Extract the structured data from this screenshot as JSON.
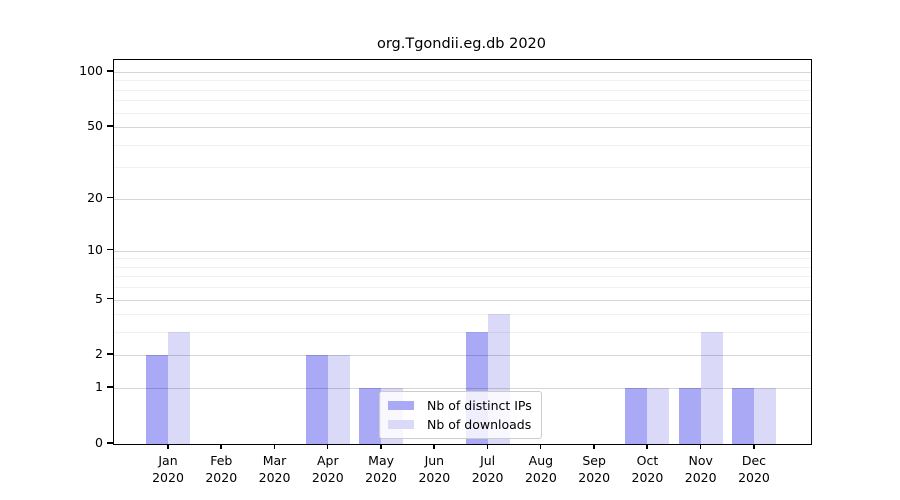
{
  "title": "org.Tgondii.eg.db 2020",
  "chart_data": {
    "type": "bar",
    "title": "org.Tgondii.eg.db 2020",
    "categories": [
      "Jan",
      "Feb",
      "Mar",
      "Apr",
      "May",
      "Jun",
      "Jul",
      "Aug",
      "Sep",
      "Oct",
      "Nov",
      "Dec"
    ],
    "category_year": "2020",
    "series": [
      {
        "name": "Nb of distinct IPs",
        "color": "#a9a9f6",
        "values": [
          2,
          0,
          0,
          2,
          1,
          0,
          3,
          0,
          0,
          1,
          1,
          1
        ]
      },
      {
        "name": "Nb of downloads",
        "color": "#dadaf8",
        "values": [
          3,
          0,
          0,
          2,
          1,
          0,
          4,
          0,
          0,
          1,
          3,
          1
        ]
      }
    ],
    "xlabel": "",
    "ylabel": "",
    "ylim": [
      0,
      100
    ],
    "y_scale": "log1p",
    "y_ticks": [
      0,
      1,
      2,
      5,
      10,
      20,
      50,
      100
    ],
    "y_minor_gridlines": [
      3,
      4,
      6,
      7,
      8,
      9,
      30,
      40,
      60,
      70,
      80,
      90
    ],
    "grid": "horizontal-on",
    "legend_position": "lower-center"
  },
  "legend": {
    "items": [
      {
        "label": "Nb of distinct IPs",
        "color": "#a9a9f6"
      },
      {
        "label": "Nb of downloads",
        "color": "#dadaf8"
      }
    ]
  }
}
